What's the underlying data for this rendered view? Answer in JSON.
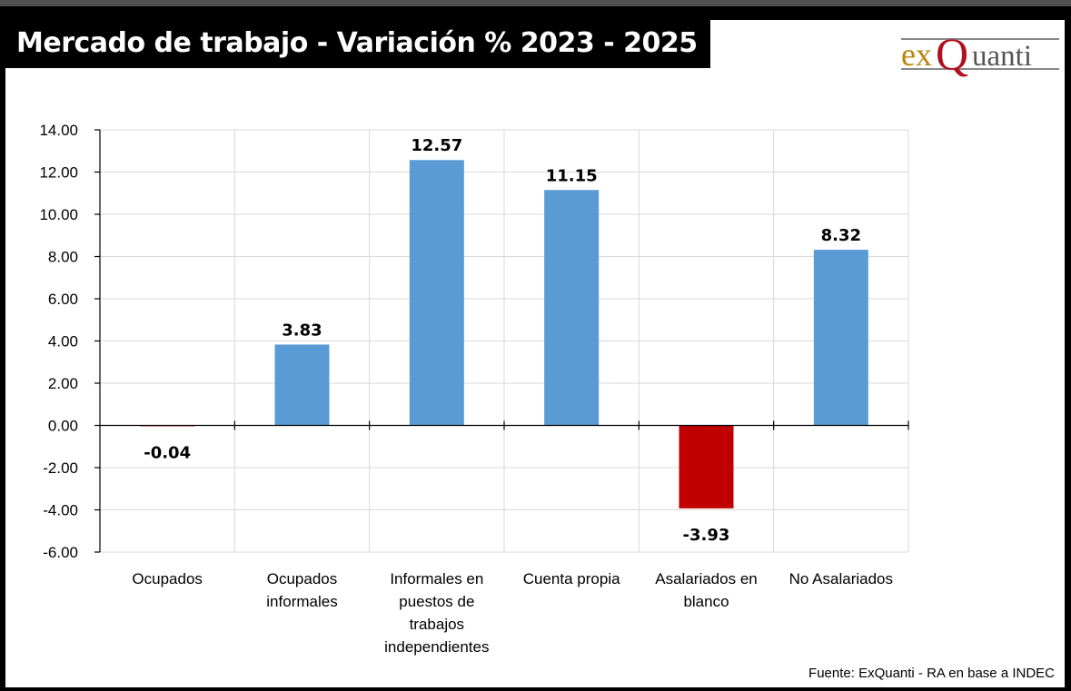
{
  "title": "Mercado de trabajo - Variación % 2023 - 2025",
  "logo": {
    "part1": "ex",
    "part2": "Q",
    "part3": "uanti",
    "colors": {
      "ex": "#b8860b",
      "Q": "#b01020",
      "uanti": "#555555"
    }
  },
  "source": "Fuente: ExQuanti - RA en base a INDEC",
  "chart_data": {
    "type": "bar",
    "title": "Mercado de trabajo - Variación % 2023 - 2025",
    "categories": [
      [
        "Ocupados"
      ],
      [
        "Ocupados",
        "informales"
      ],
      [
        "Informales en",
        "puestos de",
        "trabajos",
        "independientes"
      ],
      [
        "Cuenta propia"
      ],
      [
        "Asalariados en",
        "blanco"
      ],
      [
        "No Asalariados"
      ]
    ],
    "values": [
      -0.04,
      3.83,
      12.57,
      11.15,
      -3.93,
      8.32
    ],
    "data_labels": [
      "-0.04",
      "3.83",
      "12.57",
      "11.15",
      "-3.93",
      "8.32"
    ],
    "ylim": [
      -6,
      14
    ],
    "yticks": [
      14,
      12,
      10,
      8,
      6,
      4,
      2,
      0,
      -2,
      -4,
      -6
    ],
    "ytick_labels": [
      "14.00",
      "12.00",
      "10.00",
      "8.00",
      "6.00",
      "4.00",
      "2.00",
      "0.00",
      "-2.00",
      "-4.00",
      "-6.00"
    ],
    "grid": true,
    "colors": {
      "positive": "#5b9bd5",
      "negative": "#c00000",
      "grid": "#d9d9d9"
    }
  }
}
